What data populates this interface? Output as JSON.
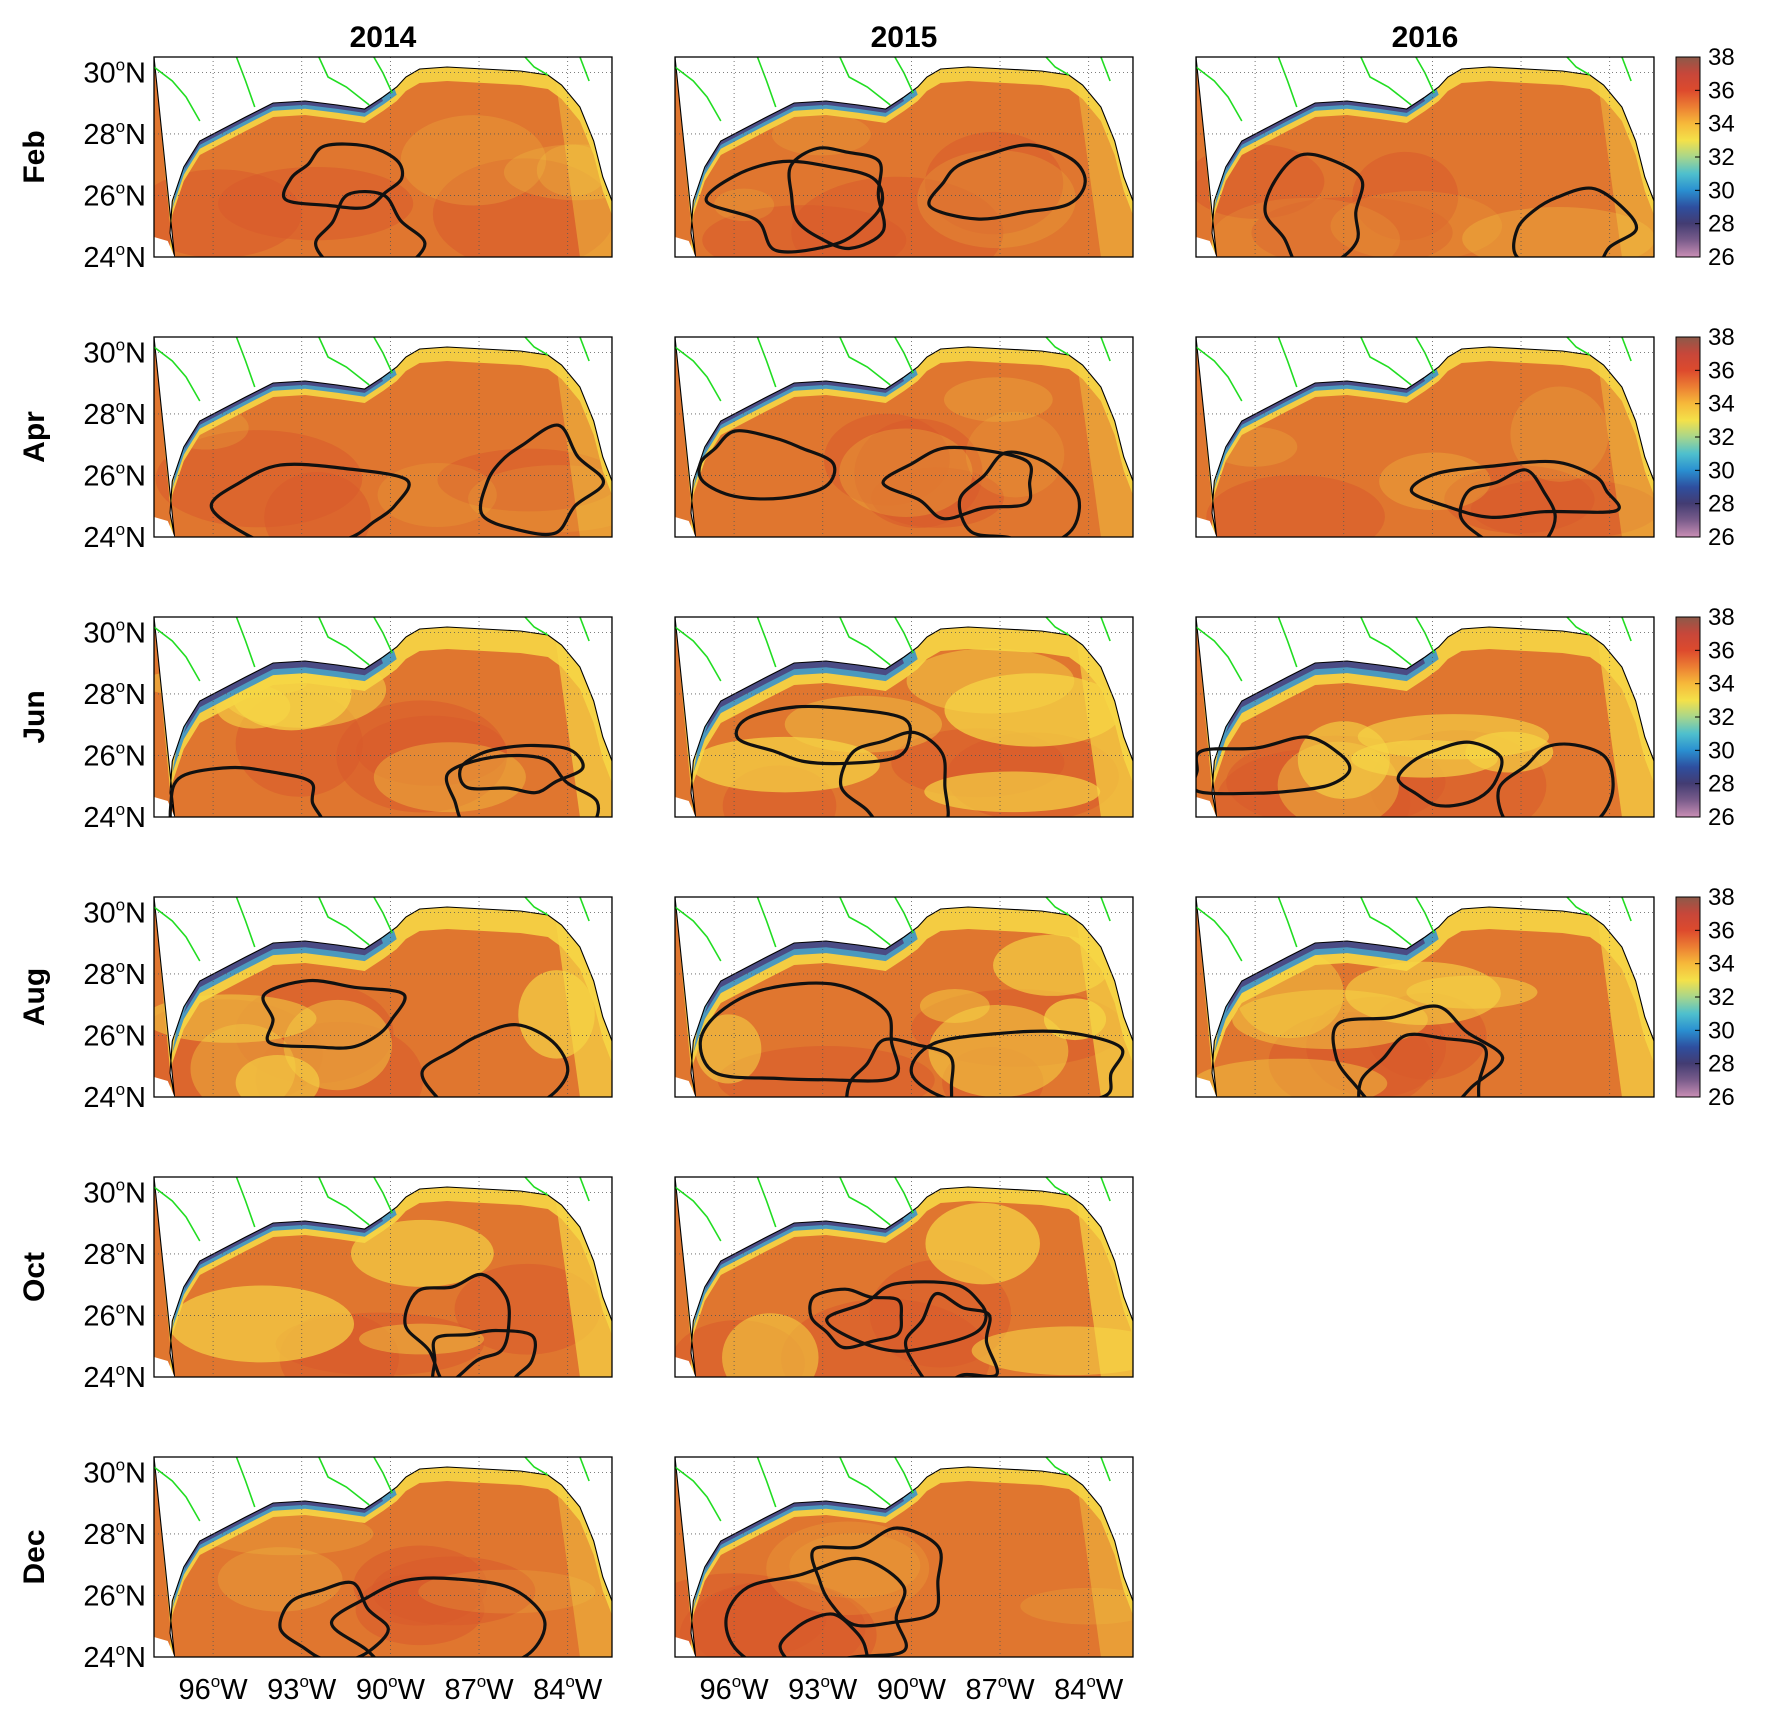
{
  "columns": [
    "2014",
    "2015",
    "2016"
  ],
  "rows": [
    "Feb",
    "Apr",
    "Jun",
    "Aug",
    "Oct",
    "Dec"
  ],
  "panels_present": [
    [
      true,
      true,
      true
    ],
    [
      true,
      true,
      true
    ],
    [
      true,
      true,
      true
    ],
    [
      true,
      true,
      true
    ],
    [
      true,
      true,
      false
    ],
    [
      true,
      true,
      false
    ]
  ],
  "lat_ticks": [
    {
      "deg": "30",
      "hemi": "N",
      "value": 30
    },
    {
      "deg": "28",
      "hemi": "N",
      "value": 28
    },
    {
      "deg": "26",
      "hemi": "N",
      "value": 26
    },
    {
      "deg": "24",
      "hemi": "N",
      "value": 24
    }
  ],
  "lon_ticks": [
    {
      "deg": "96",
      "hemi": "W",
      "value": -96
    },
    {
      "deg": "93",
      "hemi": "W",
      "value": -93
    },
    {
      "deg": "90",
      "hemi": "W",
      "value": -90
    },
    {
      "deg": "87",
      "hemi": "W",
      "value": -87
    },
    {
      "deg": "84",
      "hemi": "W",
      "value": -84
    }
  ],
  "degree_symbol": "o",
  "extent": {
    "lon": [
      -98,
      -82.5
    ],
    "lat": [
      24,
      30.5
    ]
  },
  "colorbar": {
    "ticks": [
      "38",
      "36",
      "34",
      "32",
      "30",
      "28",
      "26"
    ],
    "range": [
      26,
      38
    ],
    "colormap": [
      "#c98fb5",
      "#7b5d8c",
      "#433c72",
      "#2e4f9f",
      "#2a8fd0",
      "#4fc0cd",
      "#a7d68c",
      "#f4e14a",
      "#f6b93a",
      "#ec7f33",
      "#dd4a2d",
      "#c7473a",
      "#8c5a4a"
    ]
  },
  "colors": {
    "ocean_salty": "#e0762f",
    "ocean_saltier": "#d85a2c",
    "shelf_mid": "#f6d645",
    "shelf_low": "#2d8fd3",
    "plume": "#4a3e7b",
    "rivers": "#22dd22",
    "land": "#ffffff",
    "contour": "#111111"
  },
  "chart_data": {
    "type": "heatmap",
    "variable_range": [
      26,
      38
    ],
    "contour_lines": "black contour overlays per panel (36 level)",
    "panels_rendered": 16
  }
}
